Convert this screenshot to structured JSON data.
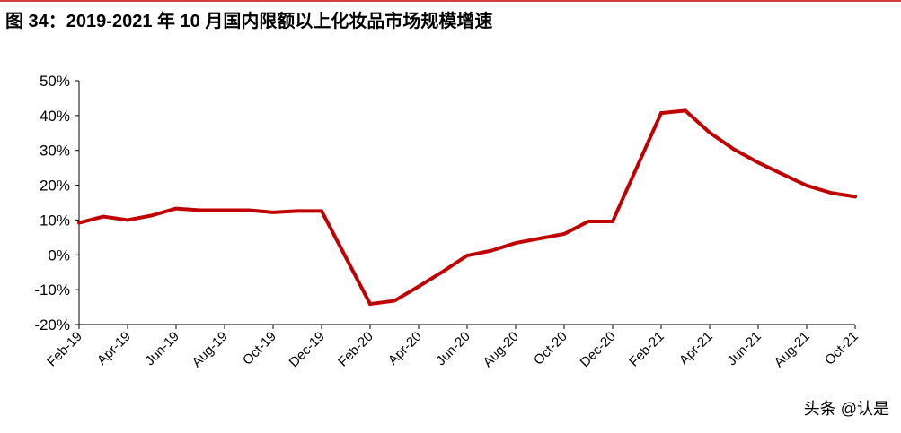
{
  "chart_data": {
    "type": "line",
    "title": "图 34：2019-2021 年 10 月国内限额以上化妆品市场规模增速",
    "watermark": "头条 @认是",
    "categories": [
      "Feb-19",
      null,
      "Apr-19",
      null,
      "Jun-19",
      null,
      "Aug-19",
      null,
      "Oct-19",
      null,
      "Dec-19",
      null,
      "Feb-20",
      null,
      "Apr-20",
      null,
      "Jun-20",
      null,
      "Aug-20",
      null,
      "Oct-20",
      null,
      "Dec-20",
      null,
      "Feb-21",
      null,
      "Apr-21",
      null,
      "Jun-21",
      null,
      "Aug-21",
      null,
      "Oct-21"
    ],
    "series": [
      {
        "color": "#c00000",
        "values": [
          9.2,
          11,
          10,
          11.3,
          13.3,
          12.8,
          12.8,
          12.8,
          12.2,
          12.6,
          12.6,
          null,
          -14.1,
          -13.2,
          -9.1,
          -4.8,
          -0.2,
          1.2,
          3.4,
          4.7,
          6.0,
          9.6,
          9.6,
          null,
          40.7,
          41.4,
          35.1,
          30.3,
          26.5,
          23.2,
          19.9,
          17.8,
          16.7
        ]
      }
    ],
    "ylim": [
      -20,
      50
    ],
    "yticks": [
      {
        "value": -20,
        "label": "-20%"
      },
      {
        "value": -10,
        "label": "-10%"
      },
      {
        "value": 0,
        "label": "0%"
      },
      {
        "value": 10,
        "label": "10%"
      },
      {
        "value": 20,
        "label": "20%"
      },
      {
        "value": 30,
        "label": "30%"
      },
      {
        "value": 40,
        "label": "40%"
      },
      {
        "value": 50,
        "label": "50%"
      }
    ],
    "title_color": "#c00000"
  }
}
